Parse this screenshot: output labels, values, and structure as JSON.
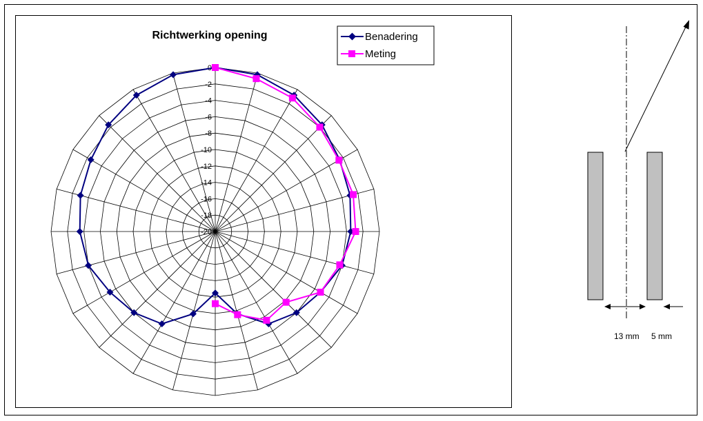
{
  "chart_data": {
    "type": "polar-line",
    "title": "Richtwerking opening",
    "radial_ticks": [
      "0",
      "-2",
      "-4",
      "-6",
      "-8",
      "-10",
      "-12",
      "-14",
      "-16",
      "-18",
      "-20"
    ],
    "rlim": [
      -20,
      0
    ],
    "angle_step_deg": 15,
    "legend_position": "top-right",
    "series": [
      {
        "name": "Benadering",
        "color": "#000080",
        "marker": "diamond",
        "angles": [
          0,
          15,
          30,
          45,
          60,
          75,
          90,
          105,
          120,
          135,
          150,
          165,
          180,
          195,
          210,
          225,
          240,
          255,
          270,
          285,
          300,
          315,
          330,
          345
        ],
        "values": [
          0,
          -0.2,
          -0.8,
          -1.6,
          -2.5,
          -3.0,
          -3.5,
          -4.0,
          -5.2,
          -6.0,
          -7.0,
          -9.6,
          -12.5,
          -9.6,
          -7.0,
          -6.0,
          -5.2,
          -4.0,
          -3.5,
          -3.0,
          -2.5,
          -1.6,
          -0.8,
          -0.2
        ]
      },
      {
        "name": "Meting",
        "color": "#ff00ff",
        "marker": "square",
        "angles": [
          0,
          15,
          30,
          45,
          60,
          75,
          90,
          105,
          120,
          135,
          150,
          165,
          180
        ],
        "values": [
          0,
          -0.7,
          -1.2,
          -2.0,
          -2.6,
          -2.6,
          -2.9,
          -4.3,
          -5.2,
          -7.8,
          -7.5,
          -9.5,
          -11.2
        ]
      }
    ]
  },
  "diagram": {
    "dimension_gap": "13 mm",
    "dimension_wall": "5 mm"
  }
}
